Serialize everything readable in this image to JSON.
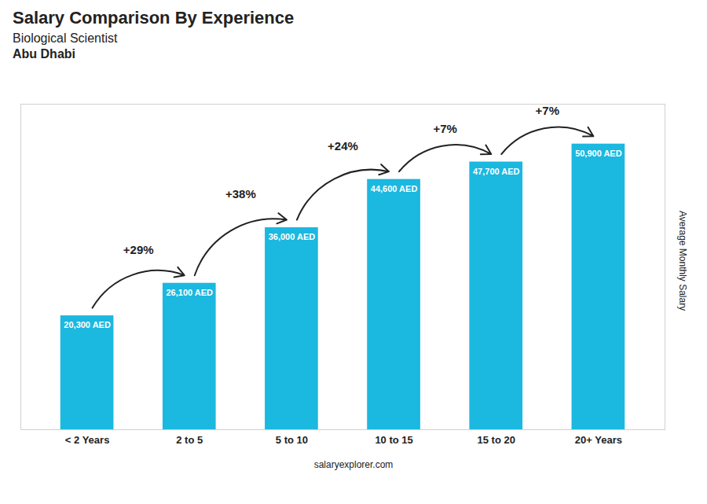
{
  "chart_data": {
    "type": "bar",
    "title": "Salary Comparison By Experience",
    "subtitle": "Biological Scientist",
    "city": "Abu Dhabi",
    "ylabel": "Average Monthly Salary",
    "caption": "salaryexplorer.com",
    "categories": [
      "< 2 Years",
      "2 to 5",
      "5 to 10",
      "10 to 15",
      "15 to 20",
      "20+ Years"
    ],
    "values": [
      20300,
      26100,
      36000,
      44600,
      47700,
      50900
    ],
    "value_labels": [
      "20,300 AED",
      "26,100 AED",
      "36,000 AED",
      "44,600 AED",
      "47,700 AED",
      "50,900 AED"
    ],
    "data_labels": true,
    "color": "#1BB8E0",
    "ylim": [
      0,
      58000
    ],
    "tick_labels": "x",
    "grid": false,
    "annotations": [
      {
        "text": "+29%",
        "from": "< 2 Years",
        "to": "2 to 5"
      },
      {
        "text": "+38%",
        "from": "2 to 5",
        "to": "5 to 10"
      },
      {
        "text": "+24%",
        "from": "5 to 10",
        "to": "10 to 15"
      },
      {
        "text": "+7%",
        "from": "10 to 15",
        "to": "15 to 20"
      },
      {
        "text": "+7%",
        "from": "15 to 20",
        "to": "20+ Years"
      }
    ]
  }
}
